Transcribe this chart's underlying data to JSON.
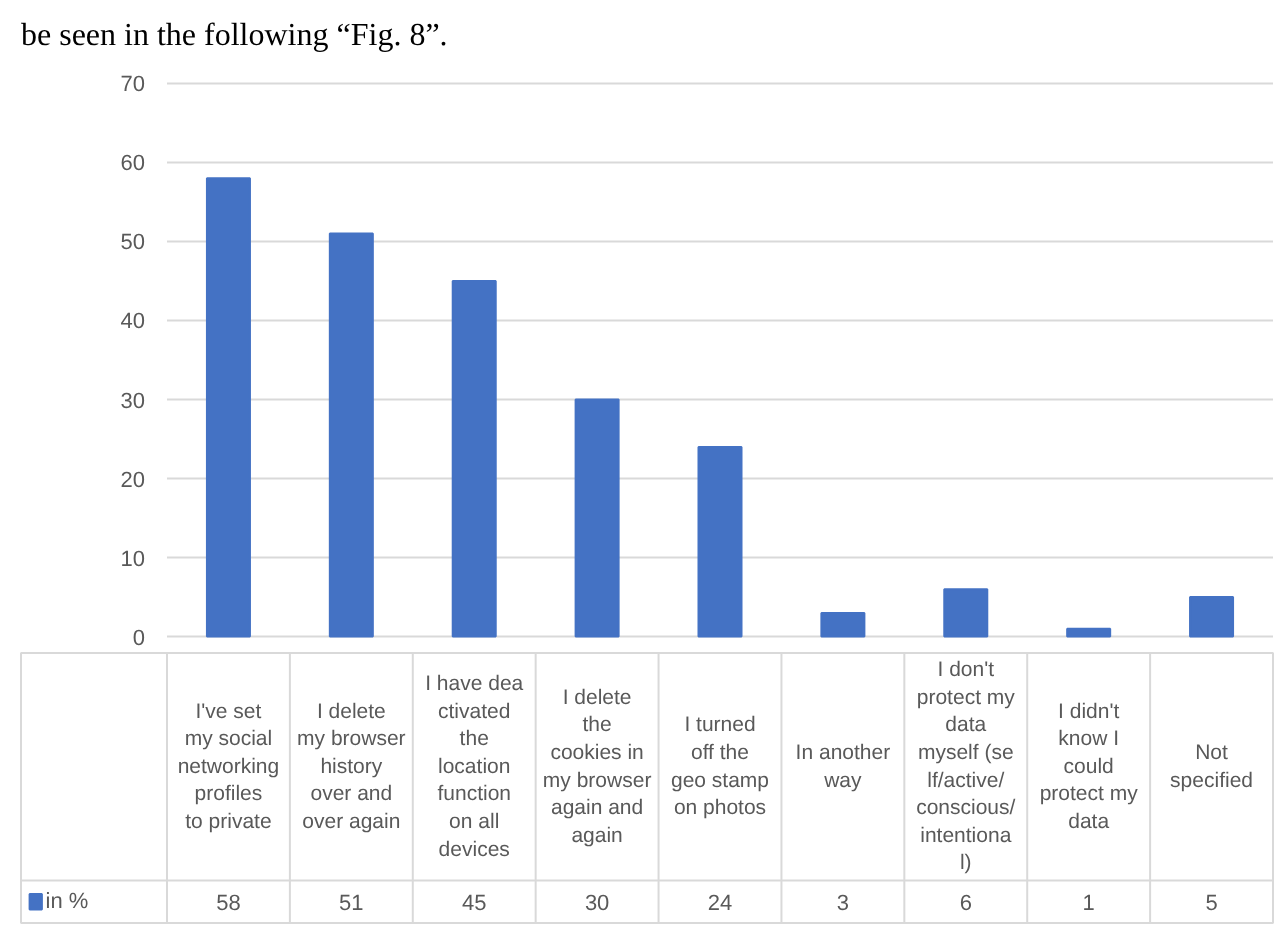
{
  "chart_data": {
    "type": "bar",
    "categories": [
      "I've set my social networking profiles to private",
      "I delete my browser history over and over again",
      "I have deactivated the location function on all devices",
      "I delete the cookies in my browser again and again",
      "I turned off the geo stamp on photos",
      "In another way",
      "I don't protect my data myself (self/active/conscious/intentional)",
      "I didn't know I could protect my data",
      "Not specified"
    ],
    "series": [
      {
        "name": "in %",
        "color": "#4472c4",
        "values": [
          58,
          51,
          45,
          30,
          24,
          3,
          6,
          1,
          5
        ]
      }
    ],
    "ylim": [
      0,
      70
    ],
    "yticks": [
      0,
      10,
      20,
      30,
      40,
      50,
      60,
      70
    ],
    "grid": "y",
    "legend": "bottom",
    "data_labels": true,
    "annotations": [
      "be seen in the following “Fig. 8”."
    ]
  }
}
